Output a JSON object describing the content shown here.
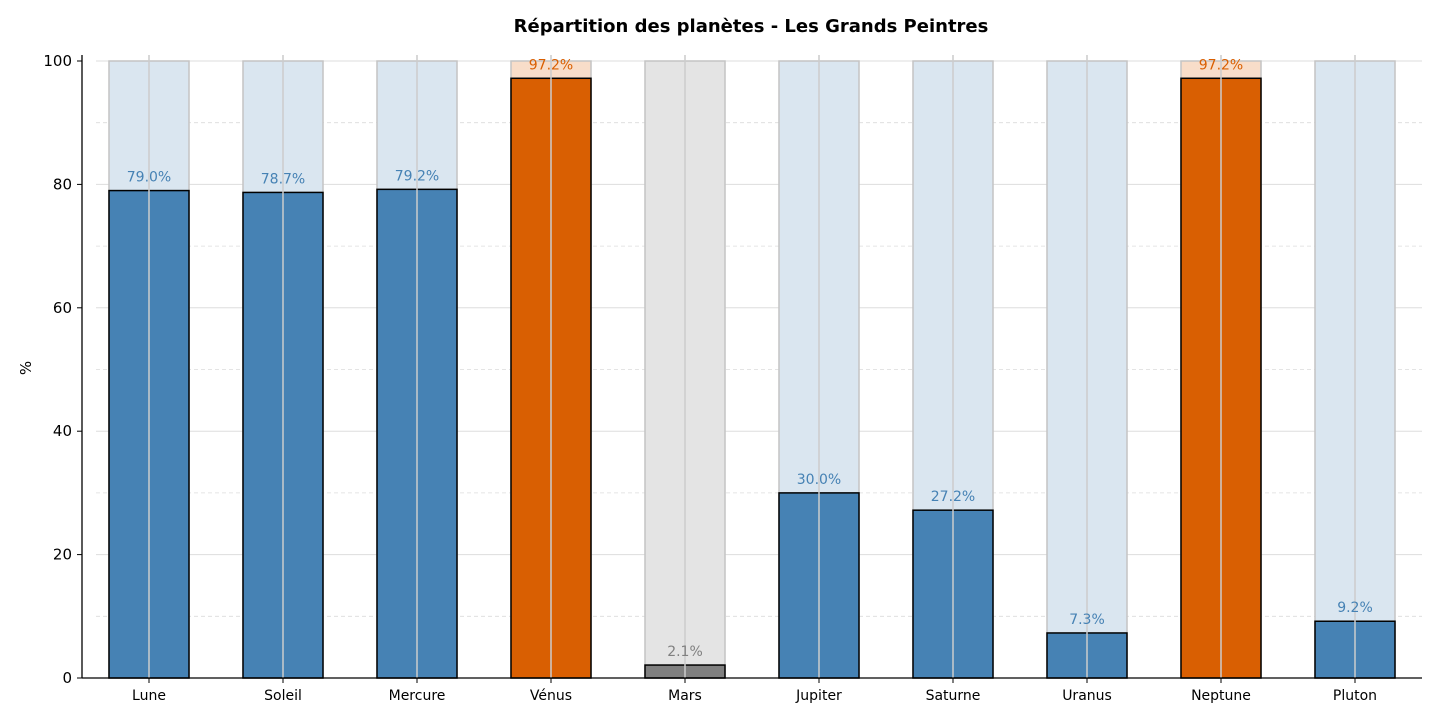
{
  "chart_data": {
    "type": "bar",
    "title": "Répartition des planètes - Les Grands Peintres",
    "xlabel": "",
    "ylabel": "%",
    "ylim": [
      0,
      100
    ],
    "yticks": [
      0,
      20,
      40,
      60,
      80,
      100
    ],
    "grid": true,
    "categories": [
      "Lune",
      "Soleil",
      "Mercure",
      "Vénus",
      "Mars",
      "Jupiter",
      "Saturne",
      "Uranus",
      "Neptune",
      "Pluton"
    ],
    "values": [
      79.0,
      78.7,
      79.2,
      97.2,
      2.1,
      30.0,
      27.2,
      7.3,
      97.2,
      9.2
    ],
    "labels": [
      "79.0%",
      "78.7%",
      "79.2%",
      "97.2%",
      "2.1%",
      "30.0%",
      "27.2%",
      "7.3%",
      "97.2%",
      "9.2%"
    ],
    "groups": [
      "normal",
      "normal",
      "normal",
      "high",
      "low",
      "normal",
      "normal",
      "normal",
      "high",
      "normal"
    ],
    "colors": {
      "normal": {
        "bar": "#4682b4",
        "bg": "#dae6f0",
        "text": "#4682b4"
      },
      "high": {
        "bar": "#d95f02",
        "bg": "#f8ddc9",
        "text": "#d95f02"
      },
      "low": {
        "bar": "#808080",
        "bg": "#e4e4e4",
        "text": "#808080"
      }
    },
    "background_total": 100
  }
}
